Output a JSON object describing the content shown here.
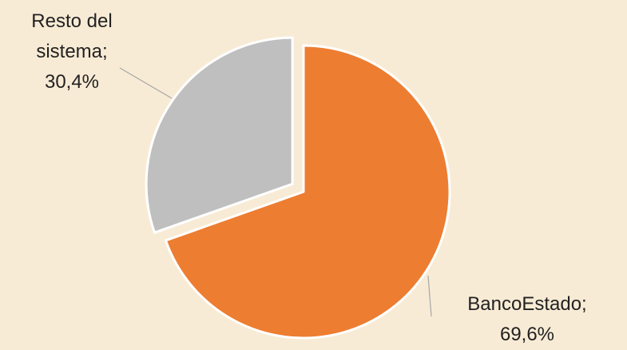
{
  "chart_data": {
    "type": "pie",
    "categories": [
      "BancoEstado;",
      "Resto del sistema;"
    ],
    "values": [
      69.6,
      30.4
    ],
    "value_labels": [
      "69,6%",
      "30,4%"
    ],
    "colors": [
      "#ed7d31",
      "#bfbfbf"
    ],
    "exploded": [
      false,
      true
    ]
  }
}
